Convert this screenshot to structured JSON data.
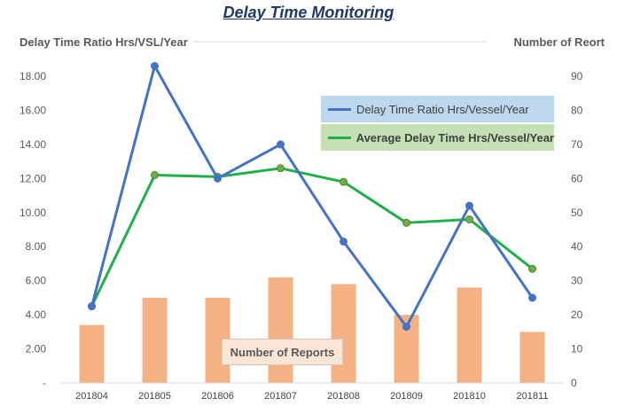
{
  "chart_data": {
    "type": "bar+line",
    "title": "Delay Time Monitoring",
    "categories": [
      "201804",
      "201805",
      "201806",
      "201807",
      "201808",
      "201809",
      "201810",
      "201811"
    ],
    "y_left": {
      "label": "Delay Time Ratio Hrs/VSL/Year",
      "range": [
        0,
        18
      ],
      "ticks": [
        "-",
        "2.00",
        "4.00",
        "6.00",
        "8.00",
        "10.00",
        "12.00",
        "14.00",
        "16.00",
        "18.00"
      ]
    },
    "y_right": {
      "label": "Number of Reort",
      "range": [
        0,
        90
      ],
      "ticks": [
        "0",
        "10",
        "20",
        "30",
        "40",
        "50",
        "60",
        "70",
        "80",
        "90"
      ]
    },
    "series": [
      {
        "name": "Number of Reports",
        "type": "bar",
        "axis": "right",
        "color": "#f4b183",
        "values": [
          17,
          25,
          25,
          31,
          29,
          20,
          28,
          15
        ]
      },
      {
        "name": "Delay Time Ratio Hrs/Vessel/Year",
        "type": "line",
        "axis": "left",
        "color": "#4472c4",
        "values": [
          4.5,
          18.6,
          12.0,
          14.0,
          8.3,
          3.3,
          10.4,
          5.0
        ]
      },
      {
        "name": "Average Delay Time Hrs/Vessel/Year",
        "type": "line",
        "axis": "left",
        "color": "#1eb04b",
        "values": [
          4.5,
          12.2,
          12.1,
          12.6,
          11.8,
          9.4,
          9.6,
          6.7
        ]
      }
    ],
    "legend": {
      "line1_bg": "#bdd7ee",
      "line2_bg": "#c5e0b4"
    },
    "grid": false
  }
}
